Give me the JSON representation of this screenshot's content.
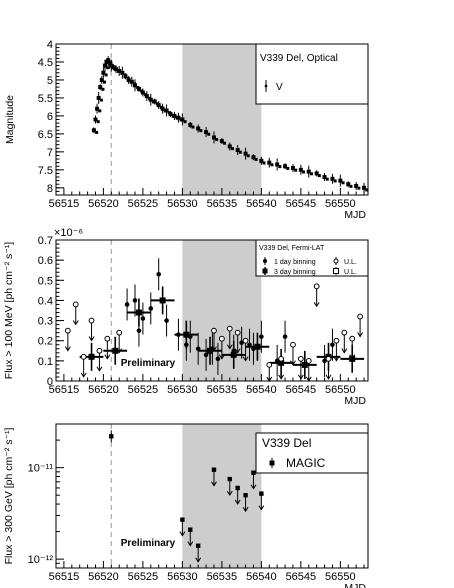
{
  "chart_data": [
    {
      "type": "scatter",
      "title": "",
      "xlabel": "MJD",
      "ylabel": "Magnitude",
      "xlim": [
        56514,
        56553.5
      ],
      "ylim": [
        8.2,
        4.0
      ],
      "y_inverted": true,
      "xticks": [
        "56515",
        "56520",
        "56525",
        "56530",
        "56535",
        "56540",
        "56545",
        "56550"
      ],
      "yticks": [
        "4",
        "4.5",
        "5",
        "5.5",
        "6",
        "6.5",
        "7",
        "7.5",
        "8"
      ],
      "legend": {
        "title": "V339 Del, Optical",
        "entries": [
          "V"
        ],
        "position": "top-right"
      },
      "shaded_range": [
        56530,
        56540
      ],
      "dashed_line_x": 56521,
      "series": [
        {
          "name": "V",
          "x": [
            56518.8,
            56519.0,
            56519.2,
            56519.4,
            56519.6,
            56519.8,
            56520.0,
            56520.2,
            56520.4,
            56520.6,
            56520.8,
            56521.0,
            56521.3,
            56521.6,
            56522.0,
            56522.4,
            56522.8,
            56523.2,
            56523.6,
            56524.0,
            56524.5,
            56525.0,
            56525.5,
            56526.0,
            56526.5,
            56527.0,
            56527.5,
            56528.0,
            56528.5,
            56529.0,
            56529.5,
            56530.0,
            56531.0,
            56532.0,
            56533.0,
            56534.0,
            56535.0,
            56536.0,
            56537.0,
            56538.0,
            56539.0,
            56540.0,
            56541.0,
            56542.0,
            56543.0,
            56544.0,
            56545.0,
            56546.0,
            56547.0,
            56548.0,
            56549.0,
            56550.0,
            56551.0,
            56552.0,
            56553.0
          ],
          "y": [
            6.4,
            6.1,
            5.8,
            5.5,
            5.2,
            5.0,
            4.8,
            4.6,
            4.5,
            4.45,
            4.55,
            4.6,
            4.65,
            4.7,
            4.75,
            4.8,
            4.9,
            5.0,
            5.05,
            5.15,
            5.25,
            5.35,
            5.45,
            5.55,
            5.6,
            5.7,
            5.8,
            5.85,
            5.95,
            6.0,
            6.05,
            6.1,
            6.25,
            6.35,
            6.45,
            6.6,
            6.7,
            6.85,
            6.95,
            7.05,
            7.15,
            7.25,
            7.3,
            7.35,
            7.4,
            7.45,
            7.5,
            7.55,
            7.6,
            7.7,
            7.75,
            7.8,
            7.9,
            7.95,
            8.0
          ]
        }
      ]
    },
    {
      "type": "scatter",
      "title": "",
      "xlabel": "MJD",
      "ylabel": "Flux > 100 MeV [ph cm⁻² s⁻¹]",
      "y_multiplier": "×10⁻⁶",
      "xlim": [
        56514,
        56553.5
      ],
      "ylim": [
        0,
        0.7
      ],
      "xticks": [
        "56515",
        "56520",
        "56525",
        "56530",
        "56535",
        "56540",
        "56545",
        "56550"
      ],
      "yticks": [
        "0",
        "0.1",
        "0.2",
        "0.3",
        "0.4",
        "0.5",
        "0.6",
        "0.7"
      ],
      "legend": {
        "title": "V339 Del, Fermi-LAT",
        "entries": [
          "1 day binning",
          "3 day binning",
          "U.L.",
          "U.L."
        ],
        "position": "top-right"
      },
      "annotation": "Preliminary",
      "shaded_range": [
        56530,
        56540
      ],
      "dashed_line_x": 56521,
      "series": [
        {
          "name": "1 day binning",
          "x": [
            56523.0,
            56524.0,
            56524.5,
            56525.0,
            56526.0,
            56527.0,
            56528.0,
            56529.5,
            56530.5,
            56531.0,
            56532.0,
            56533.0,
            56533.8,
            56534.5,
            56536.5,
            56537.5,
            56538.5,
            56539.0,
            56540.0,
            56542.0,
            56543.0,
            56548.0,
            56549.0
          ],
          "y": [
            0.38,
            0.4,
            0.25,
            0.31,
            0.36,
            0.53,
            0.3,
            0.23,
            0.18,
            0.22,
            0.16,
            0.13,
            0.16,
            0.11,
            0.15,
            0.19,
            0.18,
            0.16,
            0.22,
            0.1,
            0.22,
            0.1,
            0.18
          ]
        },
        {
          "name": "3 day binning",
          "x": [
            56518.5,
            56521.5,
            56524.5,
            56527.5,
            56530.5,
            56533.5,
            56536.5,
            56539.5,
            56542.5,
            56545.5,
            56548.5,
            56551.5
          ],
          "y": [
            0.12,
            0.15,
            0.34,
            0.4,
            0.23,
            0.15,
            0.13,
            0.17,
            0.09,
            0.08,
            0.12,
            0.11
          ]
        },
        {
          "name": "U.L. (1 day)",
          "x": [
            56515.5,
            56516.5,
            56517.5,
            56518.5,
            56519.5,
            56520.5,
            56522.0,
            56534.0,
            56535.0,
            56536.0,
            56537.0,
            56538.0,
            56541.0,
            56542.5,
            56544.0,
            56545.0,
            56546.0,
            56547.0,
            56548.5,
            56549.5,
            56550.5,
            56551.5,
            56552.5
          ],
          "y": [
            0.25,
            0.38,
            0.12,
            0.3,
            0.15,
            0.21,
            0.24,
            0.25,
            0.21,
            0.26,
            0.24,
            0.2,
            0.08,
            0.11,
            0.18,
            0.11,
            0.1,
            0.47,
            0.11,
            0.2,
            0.24,
            0.21,
            0.32
          ]
        }
      ]
    },
    {
      "type": "scatter",
      "title": "",
      "xlabel": "MJD",
      "ylabel": "Flux > 300 GeV [ph cm⁻² s⁻¹]",
      "y_scale": "log",
      "xlim": [
        56514,
        56553.5
      ],
      "ylim": [
        8e-13,
        3e-11
      ],
      "xticks": [
        "56515",
        "56520",
        "56525",
        "56530",
        "56535",
        "56540",
        "56545",
        "56550"
      ],
      "yticks": [
        "10⁻¹¹",
        "10⁻¹²"
      ],
      "legend": {
        "title": "V339 Del",
        "entries": [
          "MAGIC"
        ],
        "position": "top-right"
      },
      "annotation": "Preliminary",
      "shaded_range": [
        56530,
        56540
      ],
      "dashed_line_x": 56521,
      "series": [
        {
          "name": "MAGIC",
          "x": [
            56521.0,
            56530.0,
            56531.0,
            56532.0,
            56534.0,
            56536.0,
            56537.0,
            56538.0,
            56539.0,
            56540.0
          ],
          "y": [
            2.2e-11,
            2.7e-12,
            2.1e-12,
            1.4e-12,
            9.5e-12,
            7.5e-12,
            6e-12,
            5e-12,
            8.8e-12,
            5.2e-12
          ],
          "upper_limit": [
            false,
            true,
            true,
            true,
            true,
            true,
            true,
            true,
            true,
            true
          ]
        }
      ]
    }
  ]
}
